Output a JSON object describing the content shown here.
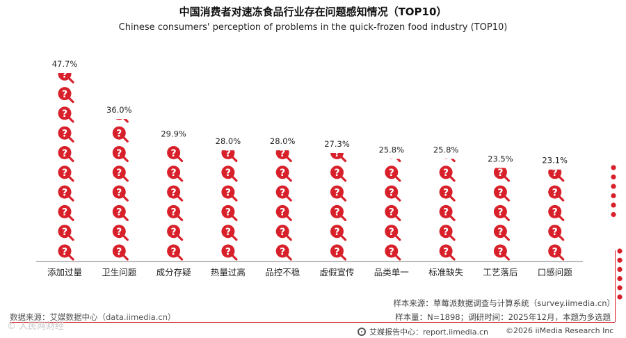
{
  "header": {
    "title": "中国消费者对速冻食品行业存在问题感知情况（TOP10）",
    "subtitle": "Chinese consumers' perception of problems in the quick-frozen food industry (TOP10)"
  },
  "chart_data": {
    "type": "bar",
    "categories": [
      "添加过量",
      "卫生问题",
      "成分存疑",
      "热量过高",
      "品控不稳",
      "虚假宣传",
      "品类单一",
      "标准缺失",
      "工艺落后",
      "口感问题"
    ],
    "values": [
      47.7,
      36.0,
      29.9,
      28.0,
      28.0,
      27.3,
      25.8,
      25.8,
      23.5,
      23.1
    ],
    "value_labels": [
      "47.7%",
      "36.0%",
      "29.9%",
      "28.0%",
      "28.0%",
      "27.3%",
      "25.8%",
      "25.8%",
      "23.5%",
      "23.1%"
    ],
    "title": "中国消费者对速冻食品行业存在问题感知情况（TOP10）",
    "xlabel": "",
    "ylabel": "",
    "ylim": [
      0,
      47.7
    ],
    "mark": "question-magnifier-icon",
    "grid": false,
    "color": "#d8202a"
  },
  "footer": {
    "data_source": "数据来源：艾媒数据中心（data.iimedia.cn）",
    "sample_source": "样本来源：草莓派数据调查与计算系统（survey.iimedia.cn）",
    "sample_size": "样本量：N=1898；调研时间：2025年12月，本题为多选题",
    "brand": "艾媒报告中心：report.iimedia.cn",
    "copyright": "©2026  iiMedia Research  Inc",
    "watermark": "©  人民网财经"
  },
  "colors": {
    "accent": "#d8202a",
    "axis": "#777777"
  }
}
